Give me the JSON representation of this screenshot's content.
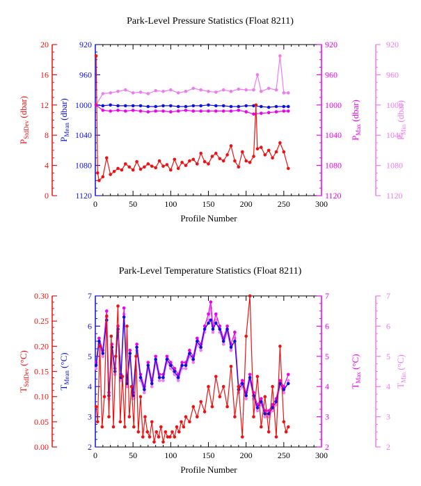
{
  "chart_data": [
    {
      "type": "line",
      "title": "Park-Level Pressure Statistics (Float 8211)",
      "xlabel": "Profile Number",
      "xlim": [
        0,
        300
      ],
      "xticks": [
        "0",
        "50",
        "100",
        "150",
        "200",
        "250",
        "300"
      ],
      "axes": [
        {
          "key": "sd",
          "label_main": "P",
          "label_sub": "StdDev",
          "label_unit": " (dbar)",
          "color": "#ee1111",
          "lim": [
            0,
            20
          ],
          "ticks": [
            "0",
            "4",
            "8",
            "12",
            "16",
            "20"
          ],
          "inverted": false
        },
        {
          "key": "mean",
          "label_main": "P",
          "label_sub": "Mean",
          "label_unit": " (dbar)",
          "color": "#1111dd",
          "lim": [
            920,
            1120
          ],
          "ticks": [
            "920",
            "960",
            "1000",
            "1040",
            "1080",
            "1120"
          ],
          "inverted": true
        },
        {
          "key": "max",
          "label_main": "P",
          "label_sub": "Max",
          "label_unit": " (dbar)",
          "color": "#ee00ee",
          "lim": [
            920,
            1120
          ],
          "ticks": [
            "920",
            "960",
            "1000",
            "1040",
            "1080",
            "1120"
          ],
          "inverted": true
        },
        {
          "key": "min",
          "label_main": "P",
          "label_sub": "Min",
          "label_unit": " (dbar)",
          "color": "#f07af0",
          "lim": [
            920,
            1120
          ],
          "ticks": [
            "920",
            "960",
            "1000",
            "1040",
            "1080",
            "1120"
          ],
          "inverted": true
        }
      ],
      "series": [
        {
          "axis": "min",
          "x": [
            1,
            10,
            20,
            30,
            40,
            50,
            60,
            70,
            80,
            90,
            100,
            110,
            120,
            130,
            140,
            150,
            160,
            170,
            180,
            190,
            200,
            210,
            215,
            220,
            230,
            240,
            245,
            250,
            256
          ],
          "values": [
            1000,
            985,
            984,
            982,
            980,
            984,
            983,
            985,
            981,
            982,
            980,
            984,
            982,
            978,
            980,
            982,
            983,
            980,
            982,
            979,
            980,
            980,
            960,
            982,
            978,
            980,
            935,
            984,
            984
          ]
        },
        {
          "axis": "mean",
          "x": [
            1,
            10,
            20,
            30,
            40,
            50,
            60,
            70,
            80,
            90,
            100,
            110,
            120,
            130,
            140,
            150,
            160,
            170,
            180,
            190,
            200,
            210,
            220,
            230,
            240,
            250,
            256
          ],
          "values": [
            1000,
            1001,
            1000,
            1001,
            1001,
            1001,
            1001,
            1002,
            1002,
            1001,
            1001,
            1002,
            1002,
            1001,
            1001,
            1000,
            1001,
            1001,
            1002,
            1002,
            1001,
            1001,
            1002,
            1003,
            1002,
            1002,
            1002
          ]
        },
        {
          "axis": "max",
          "x": [
            1,
            10,
            20,
            30,
            40,
            50,
            60,
            70,
            80,
            90,
            100,
            110,
            120,
            130,
            140,
            150,
            160,
            170,
            180,
            190,
            200,
            210,
            220,
            230,
            240,
            250,
            256
          ],
          "values": [
            1000,
            1007,
            1008,
            1007,
            1008,
            1007,
            1008,
            1009,
            1008,
            1008,
            1009,
            1008,
            1007,
            1008,
            1008,
            1008,
            1008,
            1008,
            1008,
            1007,
            1009,
            1012,
            1011,
            1010,
            1009,
            1008,
            1008
          ]
        },
        {
          "axis": "sd",
          "x": [
            1,
            3,
            5,
            10,
            15,
            20,
            25,
            30,
            35,
            40,
            45,
            50,
            55,
            60,
            65,
            70,
            75,
            80,
            85,
            90,
            95,
            100,
            105,
            110,
            115,
            120,
            125,
            130,
            135,
            140,
            145,
            150,
            155,
            160,
            165,
            170,
            175,
            180,
            185,
            190,
            195,
            200,
            205,
            210,
            213,
            215,
            220,
            225,
            230,
            235,
            240,
            245,
            250,
            256
          ],
          "values": [
            18.5,
            3,
            2,
            2.5,
            5,
            2.8,
            3.2,
            3.6,
            3.4,
            4.2,
            3.8,
            3.4,
            4.5,
            3.5,
            3.8,
            4.2,
            3.9,
            3.7,
            4.6,
            3.9,
            4.1,
            3.4,
            4.8,
            3.6,
            4.4,
            4.0,
            4.6,
            4.8,
            4.2,
            5.6,
            4.5,
            4.2,
            5.2,
            5.6,
            4.9,
            4.6,
            5.4,
            6.6,
            4.6,
            3.8,
            5.8,
            4.6,
            4.4,
            5.2,
            12,
            6.2,
            6.4,
            5.4,
            6.0,
            5.0,
            5.8,
            7.0,
            5.8,
            3.6
          ]
        }
      ]
    },
    {
      "type": "line",
      "title": "Park-Level Temperature Statistics (Float 8211)",
      "xlabel": "Profile Number",
      "xlim": [
        0,
        300
      ],
      "xticks": [
        "0",
        "50",
        "100",
        "150",
        "200",
        "250",
        "300"
      ],
      "axes": [
        {
          "key": "sd",
          "label_main": "T",
          "label_sub": "StdDev",
          "label_unit": " (°C)",
          "color": "#ee1111",
          "lim": [
            0,
            0.3
          ],
          "ticks": [
            "0.00",
            "0.05",
            "0.10",
            "0.15",
            "0.20",
            "0.25",
            "0.30"
          ],
          "inverted": false
        },
        {
          "key": "mean",
          "label_main": "T",
          "label_sub": "Mean",
          "label_unit": " (°C)",
          "color": "#1111dd",
          "lim": [
            2,
            7
          ],
          "ticks": [
            "2",
            "3",
            "4",
            "5",
            "6",
            "7"
          ],
          "inverted": false
        },
        {
          "key": "max",
          "label_main": "T",
          "label_sub": "Max",
          "label_unit": " (°C)",
          "color": "#ee00ee",
          "lim": [
            2,
            7
          ],
          "ticks": [
            "2",
            "3",
            "4",
            "5",
            "6",
            "7"
          ],
          "inverted": false
        },
        {
          "key": "min",
          "label_main": "T",
          "label_sub": "Min",
          "label_unit": " (°C)",
          "color": "#f07af0",
          "lim": [
            2,
            7
          ],
          "ticks": [
            "2",
            "3",
            "4",
            "5",
            "6",
            "7"
          ],
          "inverted": false
        }
      ],
      "series": [
        {
          "axis": "min",
          "x": [
            1,
            5,
            10,
            15,
            18,
            22,
            26,
            30,
            34,
            38,
            42,
            46,
            50,
            55,
            60,
            65,
            70,
            75,
            80,
            85,
            90,
            95,
            100,
            105,
            110,
            115,
            120,
            125,
            130,
            135,
            140,
            145,
            150,
            153,
            156,
            160,
            165,
            170,
            175,
            180,
            185,
            190,
            195,
            200,
            205,
            210,
            215,
            220,
            225,
            230,
            235,
            240,
            245,
            250,
            256
          ],
          "values": [
            4.6,
            5.4,
            5.0,
            6.3,
            3.6,
            5.2,
            4.4,
            5.8,
            4.2,
            6.4,
            4.0,
            5.0,
            3.6,
            5.2,
            4.2,
            3.8,
            4.6,
            4.0,
            4.8,
            4.2,
            4.2,
            4.8,
            4.6,
            4.4,
            4.2,
            4.6,
            4.6,
            5.0,
            4.8,
            5.4,
            5.2,
            5.8,
            6.2,
            6.6,
            5.8,
            6.2,
            5.8,
            5.4,
            5.8,
            5.2,
            5.6,
            3.8,
            4.0,
            3.6,
            4.2,
            3.6,
            3.2,
            3.4,
            3.0,
            3.0,
            3.2,
            3.4,
            4.0,
            3.8,
            4.2
          ]
        },
        {
          "axis": "max",
          "x": [
            1,
            5,
            10,
            15,
            18,
            22,
            26,
            30,
            34,
            38,
            42,
            46,
            50,
            55,
            60,
            65,
            70,
            75,
            80,
            85,
            90,
            95,
            100,
            105,
            110,
            115,
            120,
            125,
            130,
            135,
            140,
            145,
            150,
            153,
            156,
            160,
            165,
            170,
            175,
            180,
            185,
            190,
            195,
            200,
            205,
            210,
            215,
            220,
            225,
            230,
            235,
            240,
            245,
            250,
            256
          ],
          "values": [
            4.8,
            5.6,
            5.2,
            6.5,
            3.8,
            5.4,
            4.6,
            6.0,
            4.4,
            6.6,
            4.2,
            5.2,
            3.8,
            5.4,
            4.4,
            4.0,
            4.8,
            4.2,
            5.0,
            4.4,
            4.4,
            5.0,
            4.8,
            4.6,
            4.4,
            4.8,
            4.8,
            5.2,
            5.0,
            5.6,
            5.4,
            6.0,
            6.4,
            6.8,
            6.0,
            6.4,
            6.0,
            5.6,
            6.0,
            5.4,
            5.8,
            4.0,
            4.2,
            3.8,
            4.4,
            3.8,
            3.4,
            3.6,
            3.2,
            3.2,
            3.4,
            3.6,
            4.2,
            4.0,
            4.4
          ]
        },
        {
          "axis": "mean",
          "x": [
            1,
            5,
            10,
            15,
            18,
            22,
            26,
            30,
            34,
            38,
            42,
            46,
            50,
            55,
            60,
            65,
            70,
            75,
            80,
            85,
            90,
            95,
            100,
            105,
            110,
            115,
            120,
            125,
            130,
            135,
            140,
            145,
            150,
            153,
            156,
            160,
            165,
            170,
            175,
            180,
            185,
            190,
            195,
            200,
            205,
            210,
            215,
            220,
            225,
            230,
            235,
            240,
            245,
            250,
            256
          ],
          "values": [
            4.7,
            5.5,
            5.1,
            6.2,
            3.7,
            5.3,
            4.5,
            5.9,
            4.3,
            6.3,
            4.1,
            5.1,
            3.7,
            5.3,
            4.3,
            3.9,
            4.7,
            4.1,
            4.9,
            4.3,
            4.3,
            4.9,
            4.7,
            4.5,
            4.3,
            4.7,
            4.7,
            5.1,
            4.9,
            5.5,
            5.3,
            5.9,
            6.1,
            6.2,
            5.9,
            6.1,
            5.9,
            5.5,
            5.9,
            5.3,
            5.5,
            3.9,
            4.1,
            3.7,
            4.3,
            3.7,
            3.3,
            3.5,
            3.1,
            3.1,
            3.3,
            3.5,
            4.1,
            3.9,
            4.1
          ]
        },
        {
          "axis": "sd",
          "x": [
            1,
            3,
            6,
            9,
            12,
            15,
            18,
            21,
            24,
            27,
            30,
            33,
            36,
            39,
            42,
            45,
            48,
            51,
            54,
            57,
            60,
            63,
            66,
            69,
            72,
            75,
            78,
            81,
            84,
            87,
            90,
            93,
            96,
            99,
            102,
            105,
            108,
            111,
            114,
            117,
            120,
            125,
            130,
            135,
            140,
            145,
            150,
            155,
            160,
            165,
            170,
            175,
            180,
            185,
            190,
            195,
            200,
            205,
            210,
            215,
            220,
            225,
            230,
            235,
            240,
            245,
            250,
            253,
            256
          ],
          "values": [
            0.08,
            0.05,
            0.2,
            0.04,
            0.1,
            0.26,
            0.06,
            0.22,
            0.04,
            0.18,
            0.28,
            0.05,
            0.14,
            0.04,
            0.24,
            0.06,
            0.12,
            0.04,
            0.18,
            0.03,
            0.1,
            0.02,
            0.06,
            0.03,
            0.02,
            0.05,
            0.01,
            0.03,
            0.02,
            0.04,
            0.01,
            0.03,
            0.02,
            0.02,
            0.03,
            0.02,
            0.04,
            0.03,
            0.05,
            0.04,
            0.06,
            0.05,
            0.08,
            0.06,
            0.09,
            0.07,
            0.12,
            0.08,
            0.14,
            0.1,
            0.12,
            0.08,
            0.16,
            0.06,
            0.12,
            0.02,
            0.22,
            0.3,
            0.06,
            0.14,
            0.04,
            0.1,
            0.03,
            0.12,
            0.02,
            0.2,
            0.05,
            0.03,
            0.04
          ]
        }
      ]
    }
  ]
}
